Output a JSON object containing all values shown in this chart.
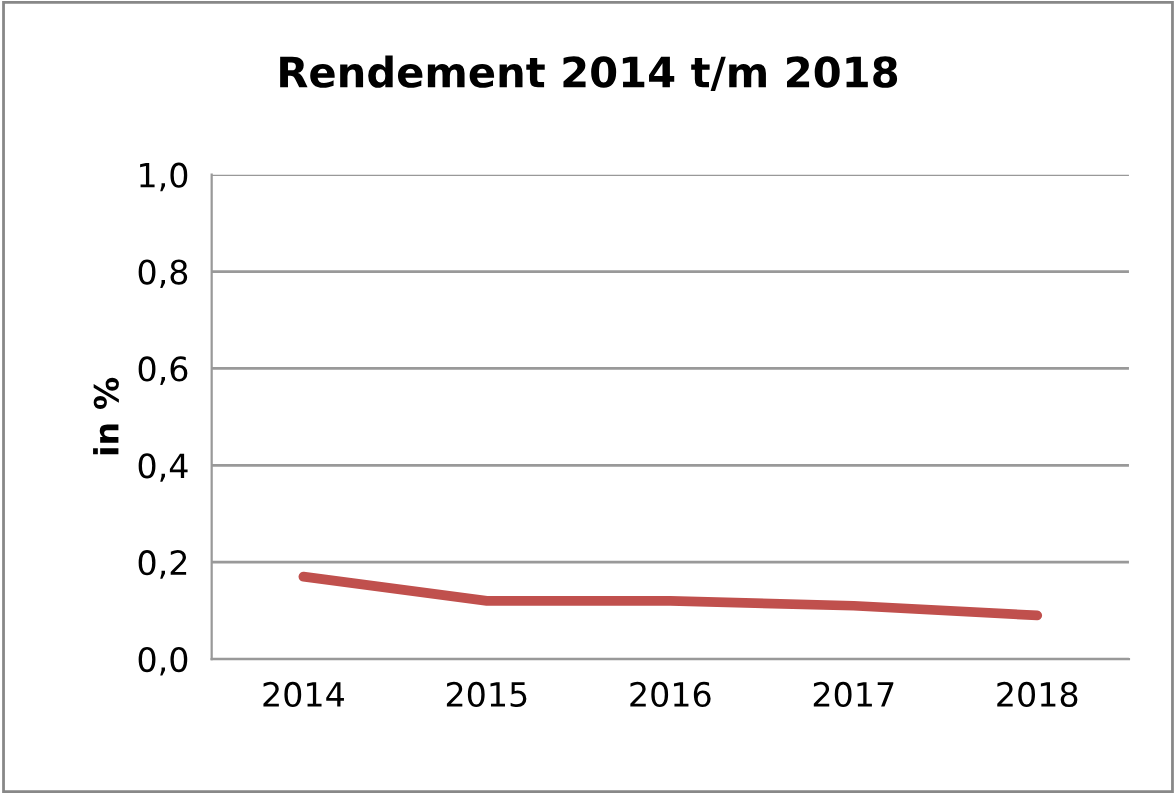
{
  "chart_data": {
    "type": "line",
    "title": "Rendement 2014 t/m 2018",
    "ylabel": "in %",
    "categories": [
      "2014",
      "2015",
      "2016",
      "2017",
      "2018"
    ],
    "series": [
      {
        "color": "#c0504d",
        "values": [
          0.17,
          0.12,
          0.12,
          0.11,
          0.09
        ]
      }
    ],
    "ylim": [
      0,
      1
    ],
    "yticks": [
      {
        "value": 0,
        "label": "0,0"
      },
      {
        "value": 0.2,
        "label": "0,2"
      },
      {
        "value": 0.4,
        "label": "0,4"
      },
      {
        "value": 0.6,
        "label": "0,6"
      },
      {
        "value": 0.8,
        "label": "0,8"
      },
      {
        "value": 1,
        "label": "1,0"
      }
    ],
    "grid": "y",
    "legend": false,
    "marker": "none",
    "line_style": "solid"
  }
}
